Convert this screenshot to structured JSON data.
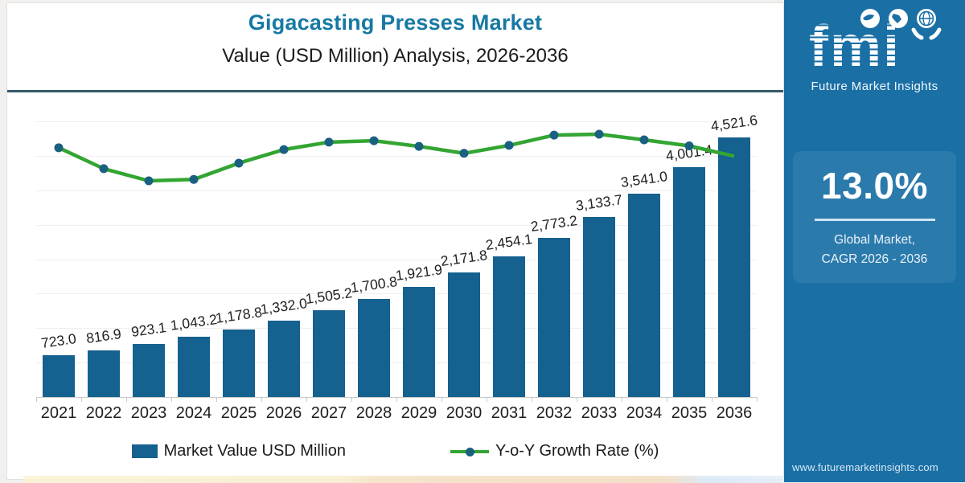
{
  "header": {
    "title": "Gigacasting Presses Market",
    "subtitle": "Value (USD Million) Analysis, 2026-2036"
  },
  "chart_data": {
    "type": "bar",
    "title": "Gigacasting Presses Market Value (USD Million) Analysis, 2026-2036",
    "categories": [
      "2021",
      "2022",
      "2023",
      "2024",
      "2025",
      "2026",
      "2027",
      "2028",
      "2029",
      "2030",
      "2031",
      "2032",
      "2033",
      "2034",
      "2035",
      "2036"
    ],
    "series": [
      {
        "name": "Market Value USD Million",
        "type": "bar",
        "color": "#15618F",
        "values": [
          723.0,
          816.9,
          923.1,
          1043.2,
          1178.8,
          1332.0,
          1505.2,
          1700.8,
          1921.9,
          2171.8,
          2454.1,
          2773.2,
          3133.7,
          3541.0,
          4001.4,
          4521.6
        ],
        "labels": [
          "723.0",
          "816.9",
          "923.1",
          "1,043.2",
          "1,178.8",
          "1,332.0",
          "1,505.2",
          "1,700.8",
          "1,921.9",
          "2,171.8",
          "2,454.1",
          "2,773.2",
          "3,133.7",
          "3,541.0",
          "4,001.4",
          "4,521.6"
        ]
      },
      {
        "name": "Y-o-Y Growth Rate (%)",
        "type": "line",
        "color": "#33A532",
        "marker_color": "#1A6080",
        "axis": "hidden",
        "note": "growth line has no visible numeric axis; values are relative plotted heights (0=lowest point 2023, 1=highest point 2033)",
        "relative_values": [
          0.71,
          0.26,
          0.0,
          0.03,
          0.38,
          0.67,
          0.83,
          0.86,
          0.74,
          0.59,
          0.76,
          0.98,
          1.0,
          0.88,
          0.75,
          0.53
        ]
      }
    ],
    "ylim": [
      0,
      5150
    ],
    "gridline_values": [
      600,
      1200,
      1800,
      2400,
      3000,
      3600,
      4200,
      4800
    ],
    "grid": "horizontal-faint",
    "legend_position": "bottom",
    "xlabel": "",
    "ylabel": ""
  },
  "legend": {
    "bar_label": "Market Value USD Million",
    "line_label": "Y-o-Y Growth Rate (%)"
  },
  "sidebar": {
    "logo_text": "fmi",
    "logo_subtext": "Future Market Insights",
    "cagr_value": "13.0%",
    "cagr_caption_line1": "Global Market,",
    "cagr_caption_line2": "CAGR 2026 - 2036",
    "website": "www.futuremarketinsights.com",
    "bg_color": "#1A6FA5"
  },
  "colors": {
    "title_accent": "#1779A3",
    "header_rule": "#33596B",
    "bar_fill": "#15618F",
    "line_green": "#33A532",
    "marker_navy": "#1A6080",
    "sidebar_blue": "#1A6FA5"
  }
}
